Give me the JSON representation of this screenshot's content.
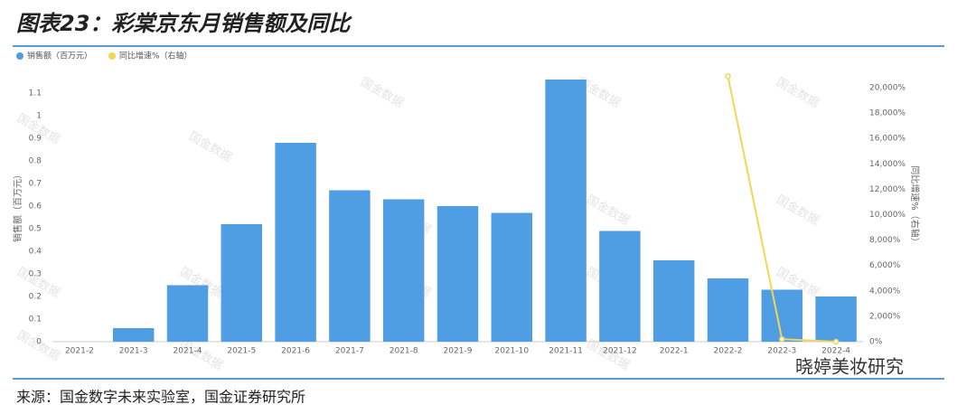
{
  "chart_data": {
    "type": "bar",
    "title": "图表23：彩棠京东月销售额及同比",
    "y_label": "销售额（百万元）",
    "y2_label": "同比增速%（右轴）",
    "categories": [
      "2021-2",
      "2021-3",
      "2021-4",
      "2021-5",
      "2021-6",
      "2021-7",
      "2021-8",
      "2021-9",
      "2021-10",
      "2021-11",
      "2021-12",
      "2022-1",
      "2022-2",
      "2022-3",
      "2022-4"
    ],
    "series": [
      {
        "name": "销售额（百万元）",
        "type": "bar",
        "color": "#4f9de3",
        "values": [
          null,
          0.06,
          0.25,
          0.52,
          0.88,
          0.67,
          0.63,
          0.6,
          0.57,
          1.16,
          0.49,
          0.36,
          0.28,
          0.23,
          0.2
        ]
      },
      {
        "name": "同比增速%（右轴）",
        "type": "line",
        "axis": "y2",
        "color": "#f5d556",
        "values": [
          null,
          null,
          null,
          null,
          null,
          null,
          null,
          null,
          null,
          null,
          null,
          null,
          20900,
          200,
          0
        ]
      }
    ],
    "ylim": [
      0,
      1.2
    ],
    "yticks": [
      0,
      0.1,
      0.2,
      0.3,
      0.4,
      0.5,
      0.6,
      0.7,
      0.8,
      0.9,
      1,
      1.1
    ],
    "y2lim": [
      0,
      21350
    ],
    "y2ticks": [
      {
        "value": 0,
        "label": "0%"
      },
      {
        "value": 2000,
        "label": "2,000%"
      },
      {
        "value": 4000,
        "label": "4,000%"
      },
      {
        "value": 6000,
        "label": "6,000%"
      },
      {
        "value": 8000,
        "label": "8,000%"
      },
      {
        "value": 10000,
        "label": "10,000%"
      },
      {
        "value": 12000,
        "label": "12,000%"
      },
      {
        "value": 14000,
        "label": "14,000%"
      },
      {
        "value": 16000,
        "label": "16,000%"
      },
      {
        "value": 18000,
        "label": "18,000%"
      },
      {
        "value": 20000,
        "label": "20,000%"
      }
    ],
    "grid": false,
    "legend": "top-left"
  },
  "source": "来源：国金数字未来实验室，国金证券研究所",
  "watermark": "国金数据",
  "brand": "晓婷美妆研究"
}
